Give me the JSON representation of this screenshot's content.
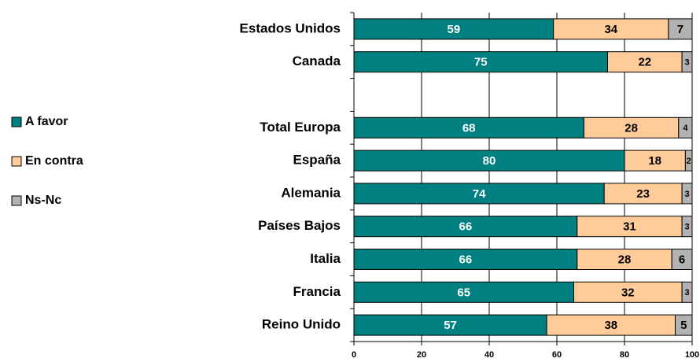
{
  "chart_data": {
    "type": "stacked_bar_horizontal",
    "categories": [
      "Estados Unidos",
      "Canada",
      null,
      "Total Europa",
      "España",
      "Alemania",
      "Países Bajos",
      "Italia",
      "Francia",
      "Reino Unido"
    ],
    "series": [
      {
        "name": "A favor",
        "color": "#008080",
        "values": [
          59,
          75,
          null,
          68,
          80,
          74,
          66,
          66,
          65,
          57
        ]
      },
      {
        "name": "En contra",
        "color": "#ffcc99",
        "values": [
          34,
          22,
          null,
          28,
          18,
          23,
          31,
          28,
          32,
          38
        ]
      },
      {
        "name": "Ns-Nc",
        "color": "#b2b2b2",
        "values": [
          7,
          3,
          null,
          4,
          2,
          3,
          3,
          6,
          3,
          5
        ]
      }
    ],
    "xlim": [
      0,
      100
    ],
    "xticks": [
      0,
      20,
      40,
      60,
      80,
      100
    ],
    "grid": true
  }
}
